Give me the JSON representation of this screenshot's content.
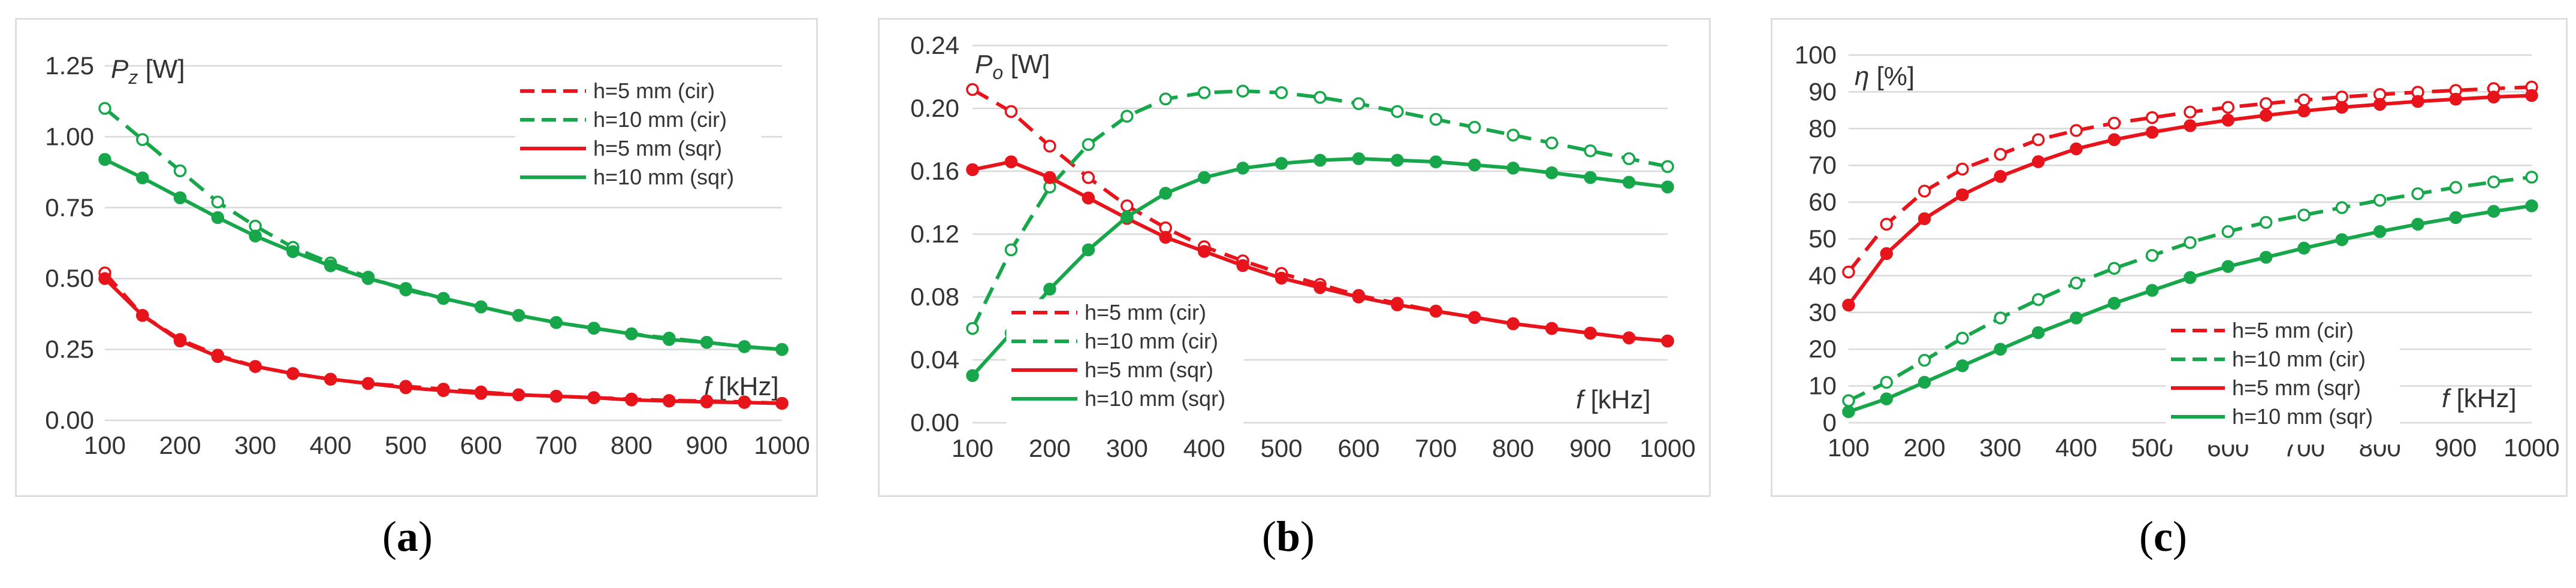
{
  "colors": {
    "red": "#e8141b",
    "green": "#17a64a"
  },
  "chart_data": [
    {
      "id": "a",
      "type": "line",
      "caption": "a",
      "ylabel_main": "P",
      "ylabel_sub": "z",
      "ylabel_unit": " [W]",
      "xlabel_main": "f",
      "xlabel_unit": " [kHz]",
      "xlim": [
        100,
        1000
      ],
      "ylim": [
        0,
        1.25
      ],
      "xticks": [
        "100",
        "200",
        "300",
        "400",
        "500",
        "600",
        "700",
        "800",
        "900",
        "1000"
      ],
      "yticks": [
        "0.00",
        "0.25",
        "0.50",
        "0.75",
        "1.00",
        "1.25"
      ],
      "legend_position": "top-right",
      "x": [
        100,
        150,
        200,
        250,
        300,
        350,
        400,
        450,
        500,
        550,
        600,
        650,
        700,
        750,
        800,
        850,
        900,
        950,
        1000
      ],
      "series": [
        {
          "name": "h=5 mm (cir)",
          "color": "red",
          "dash": true,
          "marker": "open",
          "values": [
            0.52,
            0.37,
            0.285,
            0.23,
            0.19,
            0.165,
            0.145,
            0.13,
            0.12,
            0.11,
            0.1,
            0.09,
            0.085,
            0.08,
            0.075,
            0.07,
            0.068,
            0.065,
            0.06
          ]
        },
        {
          "name": "h=10 mm (cir)",
          "color": "green",
          "dash": true,
          "marker": "open",
          "values": [
            1.1,
            0.99,
            0.88,
            0.77,
            0.685,
            0.61,
            0.555,
            0.505,
            0.46,
            0.43,
            0.4,
            0.37,
            0.345,
            0.325,
            0.305,
            0.29,
            0.275,
            0.26,
            0.25
          ]
        },
        {
          "name": "h=5 mm (sqr)",
          "color": "red",
          "dash": false,
          "marker": "filled",
          "values": [
            0.5,
            0.37,
            0.28,
            0.225,
            0.19,
            0.165,
            0.145,
            0.13,
            0.115,
            0.105,
            0.095,
            0.09,
            0.085,
            0.08,
            0.072,
            0.068,
            0.065,
            0.063,
            0.06
          ]
        },
        {
          "name": "h=10 mm (sqr)",
          "color": "green",
          "dash": false,
          "marker": "filled",
          "values": [
            0.92,
            0.855,
            0.785,
            0.715,
            0.65,
            0.595,
            0.545,
            0.5,
            0.465,
            0.43,
            0.4,
            0.37,
            0.345,
            0.325,
            0.305,
            0.285,
            0.275,
            0.26,
            0.25
          ]
        }
      ]
    },
    {
      "id": "b",
      "type": "line",
      "caption": "b",
      "ylabel_main": "P",
      "ylabel_sub": "o",
      "ylabel_unit": " [W]",
      "xlabel_main": "f",
      "xlabel_unit": " [kHz]",
      "xlim": [
        100,
        1000
      ],
      "ylim": [
        0,
        0.24
      ],
      "xticks": [
        "100",
        "200",
        "300",
        "400",
        "500",
        "600",
        "700",
        "800",
        "900",
        "1000"
      ],
      "yticks": [
        "0.00",
        "0.04",
        "0.08",
        "0.12",
        "0.16",
        "0.20",
        "0.24"
      ],
      "legend_position": "bottom-left",
      "x": [
        100,
        150,
        200,
        250,
        300,
        350,
        400,
        450,
        500,
        550,
        600,
        650,
        700,
        750,
        800,
        850,
        900,
        950,
        1000
      ],
      "series": [
        {
          "name": "h=5 mm (cir)",
          "color": "red",
          "dash": true,
          "marker": "open",
          "values": [
            0.212,
            0.198,
            0.176,
            0.156,
            0.138,
            0.124,
            0.112,
            0.103,
            0.095,
            0.088,
            0.081,
            0.076,
            0.071,
            0.067,
            0.063,
            0.06,
            0.057,
            0.054,
            0.052
          ]
        },
        {
          "name": "h=10 mm (cir)",
          "color": "green",
          "dash": true,
          "marker": "open",
          "values": [
            0.06,
            0.11,
            0.15,
            0.177,
            0.195,
            0.206,
            0.21,
            0.211,
            0.21,
            0.207,
            0.203,
            0.198,
            0.193,
            0.188,
            0.183,
            0.178,
            0.173,
            0.168,
            0.163
          ]
        },
        {
          "name": "h=5 mm (sqr)",
          "color": "red",
          "dash": false,
          "marker": "filled",
          "values": [
            0.161,
            0.166,
            0.156,
            0.143,
            0.13,
            0.118,
            0.109,
            0.1,
            0.092,
            0.086,
            0.08,
            0.075,
            0.071,
            0.067,
            0.063,
            0.06,
            0.057,
            0.054,
            0.052
          ]
        },
        {
          "name": "h=10 mm (sqr)",
          "color": "green",
          "dash": false,
          "marker": "filled",
          "values": [
            0.03,
            0.057,
            0.085,
            0.11,
            0.131,
            0.146,
            0.156,
            0.162,
            0.165,
            0.167,
            0.168,
            0.167,
            0.166,
            0.164,
            0.162,
            0.159,
            0.156,
            0.153,
            0.15
          ]
        }
      ]
    },
    {
      "id": "c",
      "type": "line",
      "caption": "c",
      "ylabel_main": "η",
      "ylabel_sub": "",
      "ylabel_unit": " [%]",
      "xlabel_main": "f",
      "xlabel_unit": " [kHz]",
      "xlim": [
        100,
        1000
      ],
      "ylim": [
        0,
        100
      ],
      "xticks": [
        "100",
        "200",
        "300",
        "400",
        "500",
        "600",
        "700",
        "800",
        "900",
        "1000"
      ],
      "yticks": [
        "0",
        "10",
        "20",
        "30",
        "40",
        "50",
        "60",
        "70",
        "80",
        "90",
        "100"
      ],
      "legend_position": "bottom-center",
      "x": [
        100,
        150,
        200,
        250,
        300,
        350,
        400,
        450,
        500,
        550,
        600,
        650,
        700,
        750,
        800,
        850,
        900,
        950,
        1000
      ],
      "series": [
        {
          "name": "h=5 mm (cir)",
          "color": "red",
          "dash": true,
          "marker": "open",
          "values": [
            41,
            54,
            63,
            69,
            73,
            77,
            79.5,
            81.5,
            83,
            84.5,
            85.8,
            86.8,
            87.8,
            88.6,
            89.3,
            89.9,
            90.4,
            90.9,
            91.3
          ]
        },
        {
          "name": "h=10 mm (cir)",
          "color": "green",
          "dash": true,
          "marker": "open",
          "values": [
            6,
            11,
            17,
            23,
            28.5,
            33.5,
            38,
            42,
            45.5,
            49,
            52,
            54.5,
            56.5,
            58.5,
            60.5,
            62.3,
            64,
            65.5,
            66.8
          ]
        },
        {
          "name": "h=5 mm (sqr)",
          "color": "red",
          "dash": false,
          "marker": "filled",
          "values": [
            32,
            46,
            55.5,
            62,
            67,
            71,
            74.5,
            77,
            79,
            80.8,
            82.3,
            83.6,
            84.8,
            85.8,
            86.6,
            87.4,
            88,
            88.6,
            89
          ]
        },
        {
          "name": "h=10 mm (sqr)",
          "color": "green",
          "dash": false,
          "marker": "filled",
          "values": [
            3,
            6.5,
            11,
            15.5,
            20,
            24.5,
            28.5,
            32.5,
            36,
            39.5,
            42.5,
            45,
            47.5,
            49.8,
            52,
            54,
            55.8,
            57.5,
            59
          ]
        }
      ]
    }
  ]
}
